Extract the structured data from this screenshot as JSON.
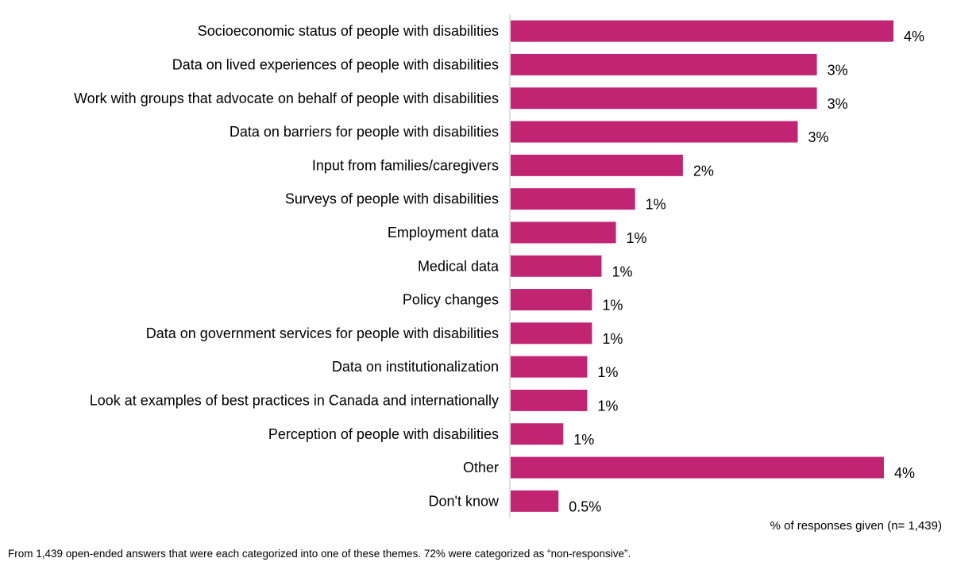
{
  "colors": {
    "bar": "#C02473",
    "axis": "#BFBFBF",
    "text": "#000000"
  },
  "chart_data": {
    "type": "bar",
    "orientation": "horizontal",
    "categories": [
      "Socioeconomic status of people with disabilities",
      "Data on lived experiences of people with disabilities",
      "Work with groups that advocate on behalf of people with disabilities",
      "Data on barriers for people with disabilities",
      "Input from families/caregivers",
      "Surveys of people with disabilities",
      "Employment data",
      "Medical data",
      "Policy changes",
      "Data on government services for people with disabilities",
      "Data on institutionalization",
      "Look at examples of best practices in Canada and internationally",
      "Perception of people with disabilities",
      "Other",
      "Don't know"
    ],
    "values": [
      4.0,
      3.2,
      3.2,
      3.0,
      1.8,
      1.3,
      1.1,
      0.95,
      0.85,
      0.85,
      0.8,
      0.8,
      0.55,
      3.9,
      0.5
    ],
    "value_labels": [
      "4%",
      "3%",
      "3%",
      "3%",
      "2%",
      "1%",
      "1%",
      "1%",
      "1%",
      "1%",
      "1%",
      "1%",
      "1%",
      "4%",
      "0.5%"
    ],
    "xlim": [
      0,
      4.3
    ],
    "xlabel": "% of responses  given  (n= 1,439)",
    "ylabel": "",
    "legend": "none",
    "grid": false
  },
  "footnote": "From 1,439 open-ended answers that were each categorized into one of these themes. 72% were categorized as “non-responsive”."
}
